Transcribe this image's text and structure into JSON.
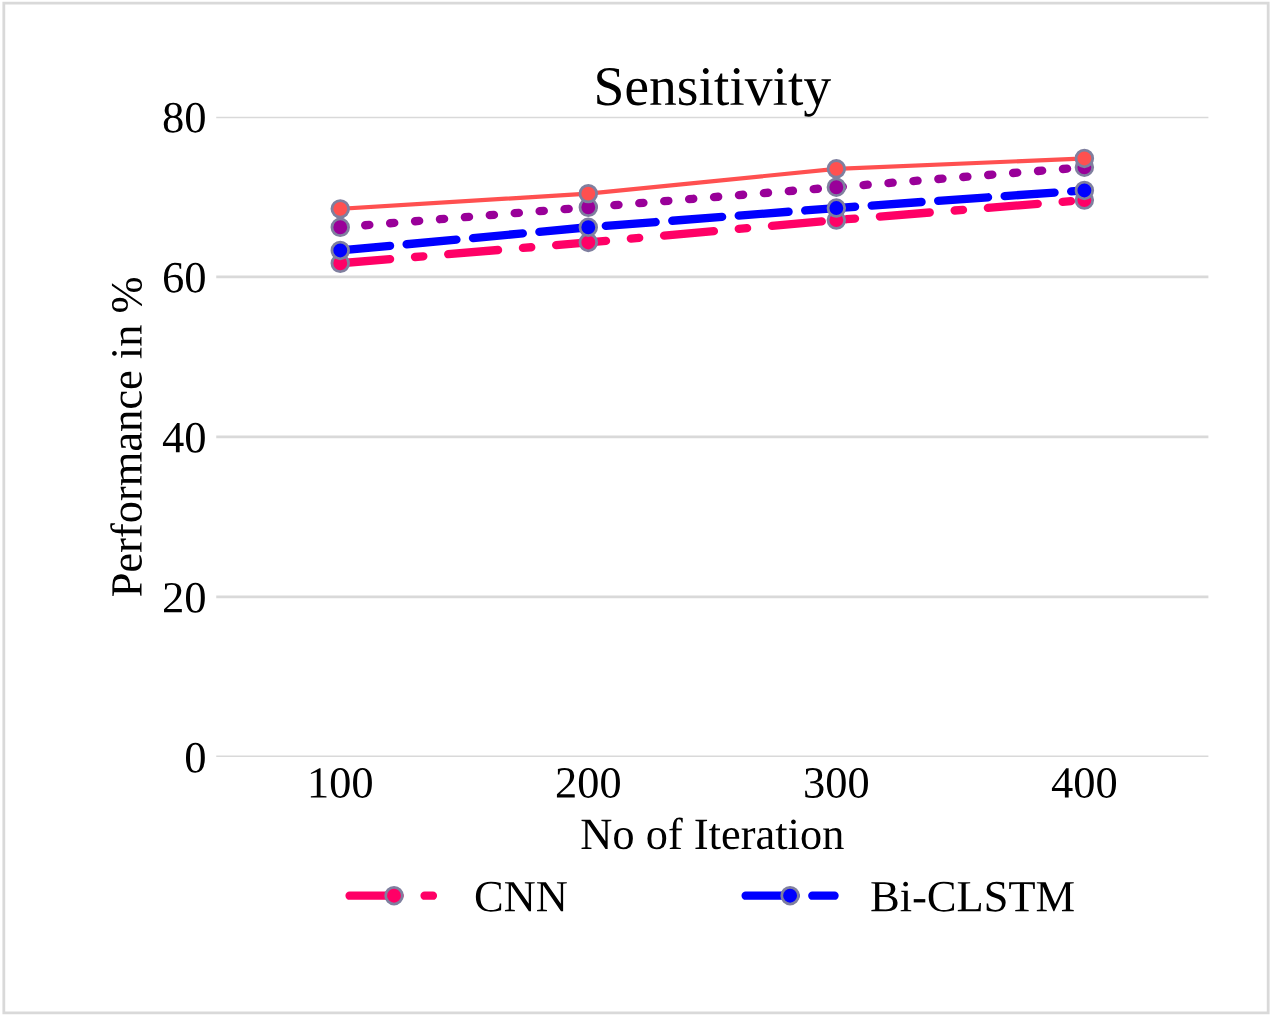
{
  "chart_data": {
    "type": "line",
    "title": "Sensitivity",
    "xlabel": "No of Iteration",
    "ylabel": "Performance in %",
    "categories": [
      "100",
      "200",
      "300",
      "400"
    ],
    "ylim": [
      0,
      80
    ],
    "yticks": [
      0,
      20,
      40,
      60,
      80
    ],
    "grid": "y",
    "legend": "bottom",
    "marker": "circle",
    "series": [
      {
        "name": "CNN",
        "color": "#ff0066",
        "line_style": "dashdot",
        "values": [
          61.7,
          64.3,
          67.1,
          69.6
        ]
      },
      {
        "name": "Bi-CLSTM",
        "color": "#0000ff",
        "line_style": "dashed",
        "values": [
          63.3,
          66.2,
          68.6,
          70.8
        ]
      },
      {
        "color": "#990099",
        "line_style": "dotted",
        "values": [
          66.2,
          68.7,
          71.2,
          73.7
        ]
      },
      {
        "color": "#ff5050",
        "line_style": "solid",
        "values": [
          68.5,
          70.4,
          73.5,
          74.8
        ]
      }
    ]
  }
}
